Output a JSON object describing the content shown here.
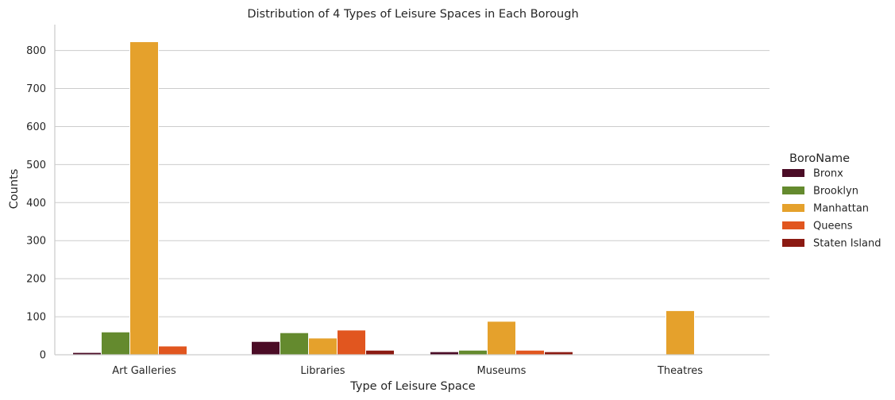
{
  "chart_data": {
    "type": "bar",
    "title": "Distribution of 4 Types of Leisure Spaces in Each Borough",
    "xlabel": "Type of Leisure Space",
    "ylabel": "Counts",
    "categories": [
      "Art Galleries",
      "Libraries",
      "Museums",
      "Theatres"
    ],
    "ylim": [
      0,
      868
    ],
    "yticks": [
      0,
      100,
      200,
      300,
      400,
      500,
      600,
      700,
      800
    ],
    "grid": "horizontal",
    "legend": {
      "title": "BoroName",
      "placement": "right"
    },
    "series": [
      {
        "name": "Bronx",
        "color": "#4b0c26",
        "values": [
          6,
          35,
          8,
          0
        ]
      },
      {
        "name": "Brooklyn",
        "color": "#648a2e",
        "values": [
          60,
          58,
          12,
          0
        ]
      },
      {
        "name": "Manhattan",
        "color": "#e5a12c",
        "values": [
          823,
          44,
          88,
          116
        ]
      },
      {
        "name": "Queens",
        "color": "#e1561f",
        "values": [
          23,
          65,
          12,
          0
        ]
      },
      {
        "name": "Staten Island",
        "color": "#8b1a12",
        "values": [
          0,
          12,
          8,
          0
        ]
      }
    ]
  }
}
